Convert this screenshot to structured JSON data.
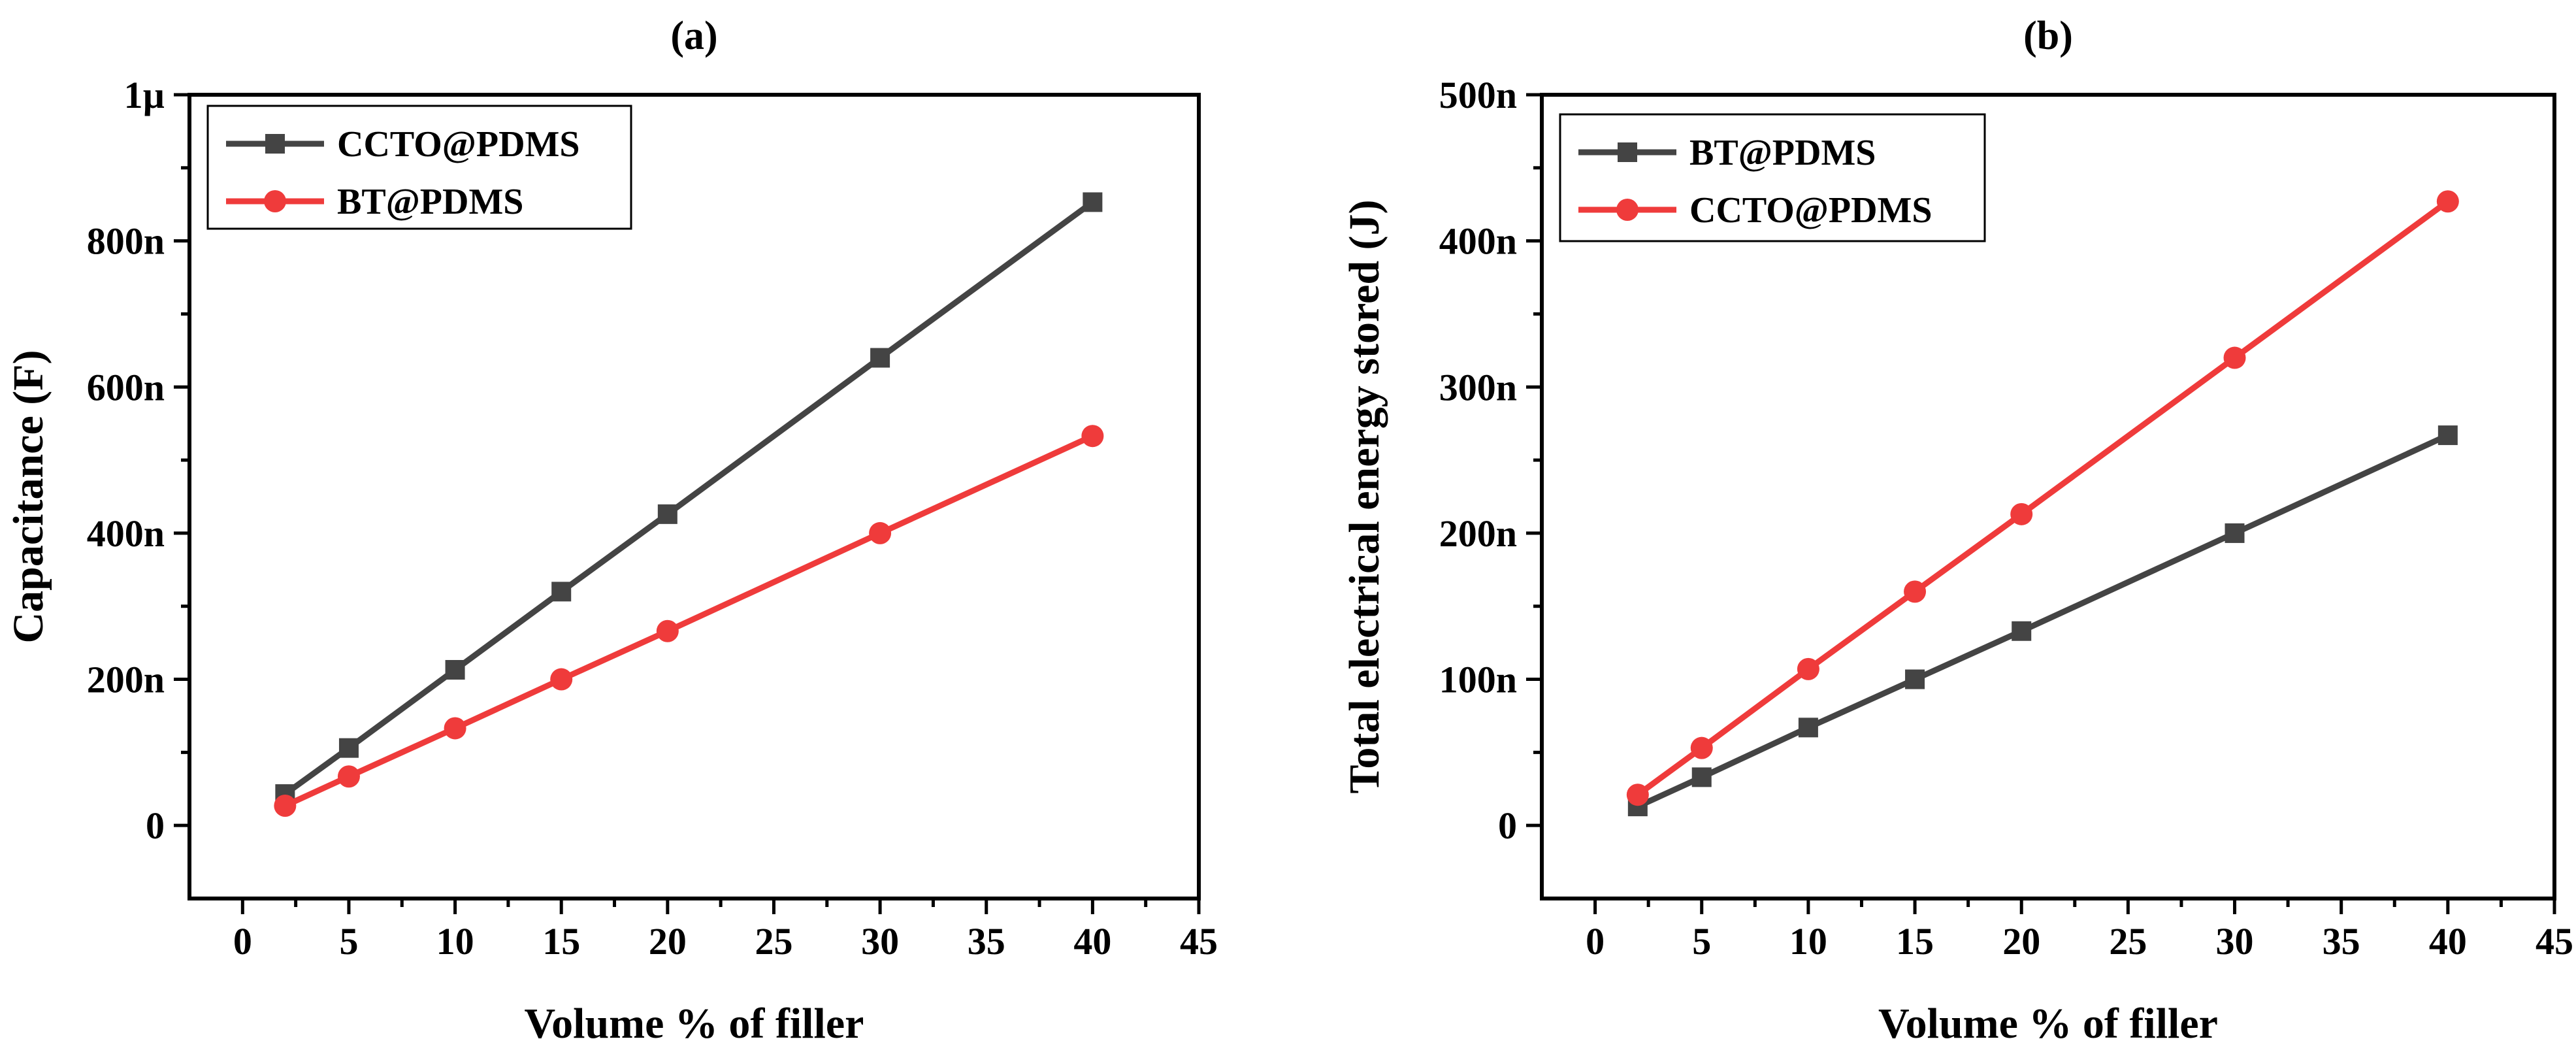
{
  "colors": {
    "dark_series": "#444444",
    "red_series": "#ef3b3b",
    "axis": "#000000"
  },
  "chart_data": [
    {
      "panel_label": "(a)",
      "type": "line",
      "xlabel": "Volume % of filler",
      "ylabel": "Capacitance (F)",
      "xlim": [
        -2.5,
        45
      ],
      "ylim": [
        -100,
        1000
      ],
      "x_ticks": [
        0,
        5,
        10,
        15,
        20,
        25,
        30,
        35,
        40,
        45
      ],
      "x_tick_labels": [
        "0",
        "5",
        "10",
        "15",
        "20",
        "25",
        "30",
        "35",
        "40",
        "45"
      ],
      "y_ticks": [
        0,
        200,
        400,
        600,
        800,
        1000
      ],
      "y_tick_labels": [
        "0",
        "200n",
        "400n",
        "600n",
        "800n",
        "1µ"
      ],
      "y_unit": "nF",
      "legend_position": "top-left",
      "series": [
        {
          "name": "CCTO@PDMS",
          "marker": "square",
          "color": "#444444",
          "x": [
            2,
            5,
            10,
            15,
            20,
            30,
            40
          ],
          "values": [
            43,
            106,
            213,
            320,
            426,
            640,
            853
          ]
        },
        {
          "name": "BT@PDMS",
          "marker": "circle",
          "color": "#ef3b3b",
          "x": [
            2,
            5,
            10,
            15,
            20,
            30,
            40
          ],
          "values": [
            27,
            67,
            133,
            200,
            266,
            400,
            533
          ]
        }
      ]
    },
    {
      "panel_label": "(b)",
      "type": "line",
      "xlabel": "Volume % of filler",
      "ylabel": "Total electrical energy stored (J)",
      "xlim": [
        -2.5,
        45
      ],
      "ylim": [
        -50,
        500
      ],
      "x_ticks": [
        0,
        5,
        10,
        15,
        20,
        25,
        30,
        35,
        40,
        45
      ],
      "x_tick_labels": [
        "0",
        "5",
        "10",
        "15",
        "20",
        "25",
        "30",
        "35",
        "40",
        "45"
      ],
      "y_ticks": [
        0,
        100,
        200,
        300,
        400,
        500
      ],
      "y_tick_labels": [
        "0",
        "100n",
        "200n",
        "300n",
        "400n",
        "500n"
      ],
      "y_unit": "nJ",
      "legend_position": "top-left",
      "series": [
        {
          "name": "BT@PDMS",
          "marker": "square",
          "color": "#444444",
          "x": [
            2,
            5,
            10,
            15,
            20,
            30,
            40
          ],
          "values": [
            13,
            33,
            67,
            100,
            133,
            200,
            267
          ]
        },
        {
          "name": "CCTO@PDMS",
          "marker": "circle",
          "color": "#ef3b3b",
          "x": [
            2,
            5,
            10,
            15,
            20,
            30,
            40
          ],
          "values": [
            21,
            53,
            107,
            160,
            213,
            320,
            427
          ]
        }
      ]
    }
  ]
}
